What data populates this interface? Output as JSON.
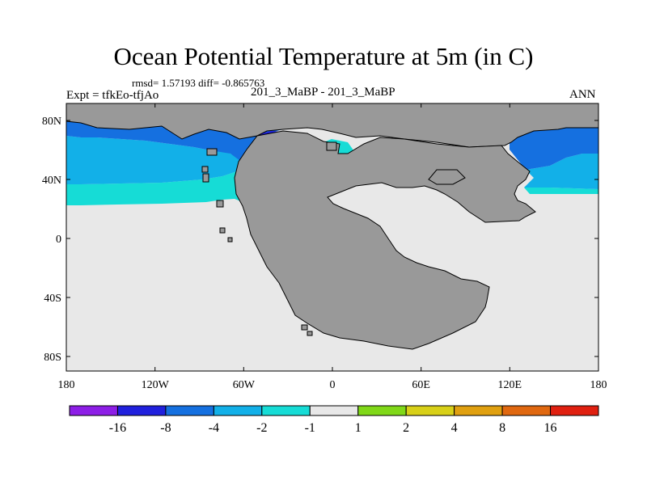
{
  "figure": {
    "title": "Ocean Potential Temperature at 5m (in C)",
    "stats": "rmsd= 1.57193 diff= -0.865763",
    "expt": "Expt = tfkEo-tfjAo",
    "case_label": "201_3_MaBP - 201_3_MaBP",
    "season": "ANN"
  },
  "axes": {
    "lat_labels": [
      "80N",
      "40N",
      "0",
      "40S",
      "80S"
    ],
    "lon_labels": [
      "180",
      "120W",
      "60W",
      "0",
      "60E",
      "120E",
      "180"
    ]
  },
  "colorbar": {
    "colors": [
      "#8d1ee6",
      "#2020dd",
      "#1570e0",
      "#12b0e8",
      "#16dcd6",
      "#e8e8e8",
      "#80d818",
      "#d8d018",
      "#e0a010",
      "#e06810",
      "#e02010"
    ],
    "labels": [
      "-16",
      "-8",
      "-4",
      "-2",
      "-1",
      "1",
      "2",
      "4",
      "8",
      "16"
    ]
  },
  "map_colors": {
    "land": "#999999",
    "neutral_ocean": "#e8e8e8"
  }
}
